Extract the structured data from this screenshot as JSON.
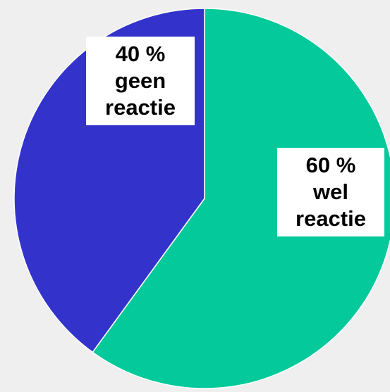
{
  "chart_data": {
    "type": "pie",
    "categories": [
      "wel reactie",
      "geen reactie"
    ],
    "values": [
      60,
      40
    ],
    "value_labels": [
      "60 %",
      "40 %"
    ],
    "colors": [
      "#04c99b",
      "#3333cc"
    ]
  }
}
